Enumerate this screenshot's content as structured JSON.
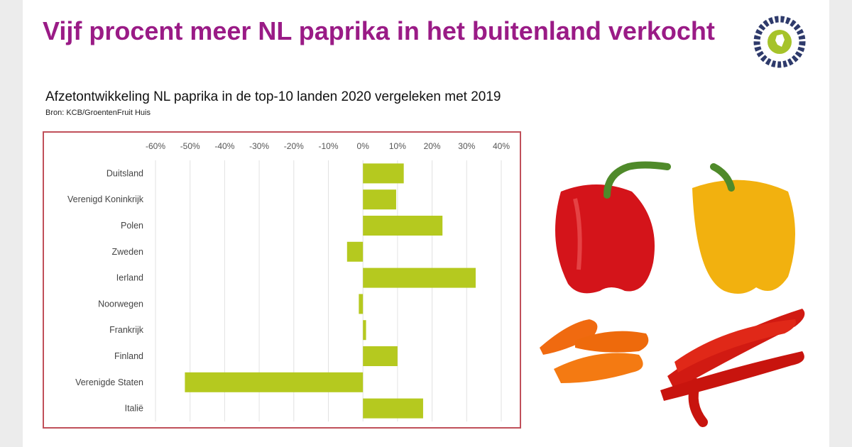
{
  "title": "Vijf procent meer NL paprika in het buitenland verkocht",
  "subtitle": "Afzetontwikkeling NL paprika in de top-10 landen 2020 vergeleken met 2019",
  "source": "Bron: KCB/GroentenFruit Huis",
  "logo": {
    "text": "GroentenFruit Huis",
    "accent": "#a6c32a"
  },
  "colors": {
    "title": "#9a1b86",
    "bar": "#b5c91f",
    "frame": "#c0505a"
  },
  "chart_data": {
    "type": "bar",
    "orientation": "horizontal",
    "categories": [
      "Duitsland",
      "Verenigd Koninkrijk",
      "Polen",
      "Zweden",
      "Ierland",
      "Noorwegen",
      "Frankrijk",
      "Finland",
      "Verenigde Staten",
      "Italië"
    ],
    "values": [
      11.8,
      9.6,
      23,
      -4.6,
      32.6,
      -1.2,
      0.9,
      10,
      -51.5,
      17.4
    ],
    "xlim": [
      -60,
      40
    ],
    "xticks": [
      "-60%",
      "-50%",
      "-40%",
      "-30%",
      "-20%",
      "-10%",
      "0%",
      "10%",
      "20%",
      "30%",
      "40%"
    ],
    "tick_values": [
      -60,
      -50,
      -40,
      -30,
      -20,
      -10,
      0,
      10,
      20,
      30,
      40
    ],
    "axis_position": "top",
    "grid": true
  }
}
